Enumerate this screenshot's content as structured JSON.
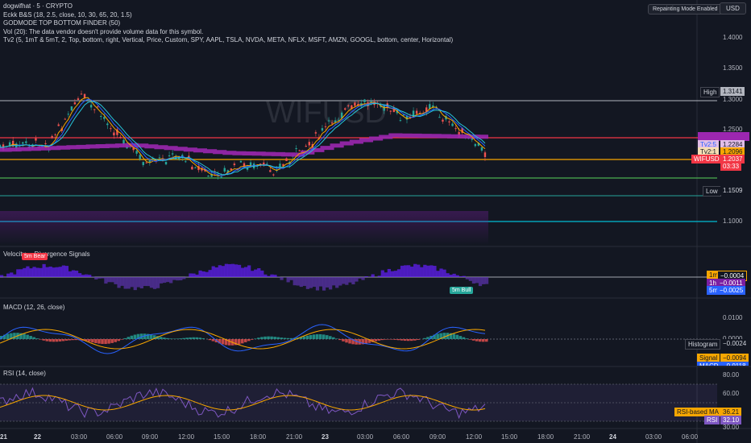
{
  "header": {
    "symbol_line": "dogwifhat · 5 · CRYPTO",
    "indicators": [
      "Eckk B&S (18, 2.5, close, 10, 30, 65, 20, 1.5)",
      "GODMODE TOP BOTTOM FINDER (50)",
      "Vol (20): The data vendor doesn't provide volume data for this symbol.",
      "Tv2 (5, 1mT & 5mT, 2, Top, bottom, right, Vertical, Price, Custom, SPY, AAPL, TSLA, NVDA, META, NFLX, MSFT, AMZN, GOOGL, bottom, center, Horizontal)"
    ],
    "repaint_button": "Repainting Mode Enabled",
    "currency_button": "USD"
  },
  "watermark": "WIFUSD",
  "price_axis": {
    "ticks": [
      "1.4000",
      "1.3500",
      "1.3000",
      "1.2500",
      "1.1000"
    ],
    "high_label": "High",
    "high_value": "1.3141",
    "low_label": "Low",
    "low_value": "1.1509",
    "tv2_5_label": "Tv2:5",
    "tv2_5_value": "1.2284",
    "tv2_1_label": "Tv2:1",
    "tv2_1_value": "1.2096",
    "symbol_label": "WIFUSD",
    "symbol_value": "1.2037",
    "countdown": "03:33"
  },
  "velocity_panel": {
    "title": "Velocity ... Divergence Signals",
    "bear_tag": "5m Bear",
    "bull_tag": "5m Bull",
    "rows": [
      {
        "label": "1m",
        "value": "−0.0004"
      },
      {
        "label": "1h",
        "value": "−0.0011"
      },
      {
        "label": "5m",
        "value": "−0.0025"
      }
    ]
  },
  "macd_panel": {
    "title": "MACD (12, 26, close)",
    "ticks": [
      "0.0100",
      "0.0000"
    ],
    "histogram_label": "Histogram",
    "histogram_value": "−0.0024",
    "signal_label": "Signal",
    "signal_value": "−0.0094",
    "macd_label": "MACD",
    "macd_value": "−0.0118"
  },
  "rsi_panel": {
    "title": "RSI (14, close)",
    "ticks": [
      "80.00",
      "60.00",
      "30.00"
    ],
    "ma_label": "RSI-based MA",
    "ma_value": "36.21",
    "rsi_label": "RSI",
    "rsi_value": "32.10"
  },
  "time_axis": [
    "21",
    "22",
    "03:00",
    "06:00",
    "09:00",
    "12:00",
    "15:00",
    "18:00",
    "21:00",
    "23",
    "03:00",
    "06:00",
    "09:00",
    "12:00",
    "15:00",
    "18:00",
    "21:00",
    "24",
    "03:00",
    "06:00"
  ],
  "colors": {
    "background": "#131722",
    "purple": "#9c27b0",
    "red_line": "#f23645",
    "orange_line": "#f7a600",
    "green_line": "#26a69a",
    "blue": "#2962ff"
  }
}
